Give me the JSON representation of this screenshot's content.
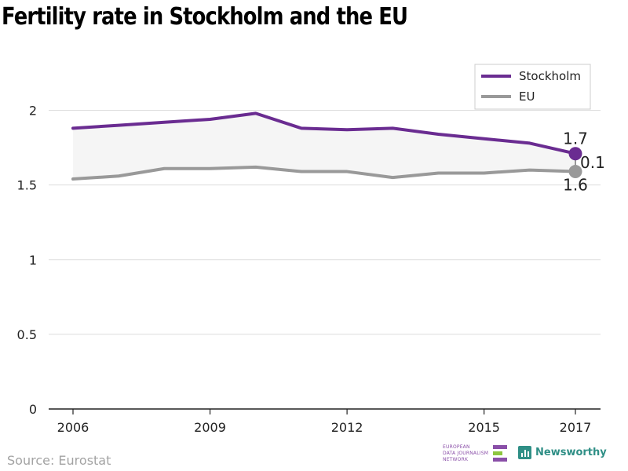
{
  "title": "Fertility rate in Stockholm and the EU",
  "source": "Source: Eurostat",
  "logos": {
    "edjnet_lines": [
      "EUROPEAN",
      "DATA JOURNALISM",
      "NETWORK"
    ],
    "newsworthy": "Newsworthy"
  },
  "colors": {
    "stockholm": "#6a2c91",
    "eu": "#999999",
    "band": "#f5f5f5",
    "grid": "#dddddd",
    "edjnet_purple": "#8a4fa8",
    "edjnet_green": "#8dc63f",
    "newsworthy_teal": "#2f8f86"
  },
  "chart_data": {
    "type": "line",
    "x": [
      2006,
      2007,
      2008,
      2009,
      2010,
      2011,
      2012,
      2013,
      2014,
      2015,
      2016,
      2017
    ],
    "series": [
      {
        "name": "Stockholm",
        "values": [
          1.88,
          1.9,
          1.92,
          1.94,
          1.98,
          1.88,
          1.87,
          1.88,
          1.84,
          1.81,
          1.78,
          1.71
        ]
      },
      {
        "name": "EU",
        "values": [
          1.54,
          1.56,
          1.61,
          1.61,
          1.62,
          1.59,
          1.59,
          1.55,
          1.58,
          1.58,
          1.6,
          1.59
        ]
      }
    ],
    "xticks": [
      2006,
      2009,
      2012,
      2015,
      2017
    ],
    "yticks": [
      {
        "value": 0,
        "label": "0"
      },
      {
        "value": 0.5,
        "label": "0.5"
      },
      {
        "value": 1,
        "label": "1"
      },
      {
        "value": 1.5,
        "label": "1.5"
      },
      {
        "value": 2,
        "label": "2"
      }
    ],
    "ylim": [
      0,
      2.25
    ],
    "xlim": [
      2006,
      2017
    ],
    "grid": true,
    "legend_position": "top-right",
    "annotations": {
      "stockholm_last": "1.7",
      "eu_last": "1.6",
      "difference": "0.1"
    }
  }
}
